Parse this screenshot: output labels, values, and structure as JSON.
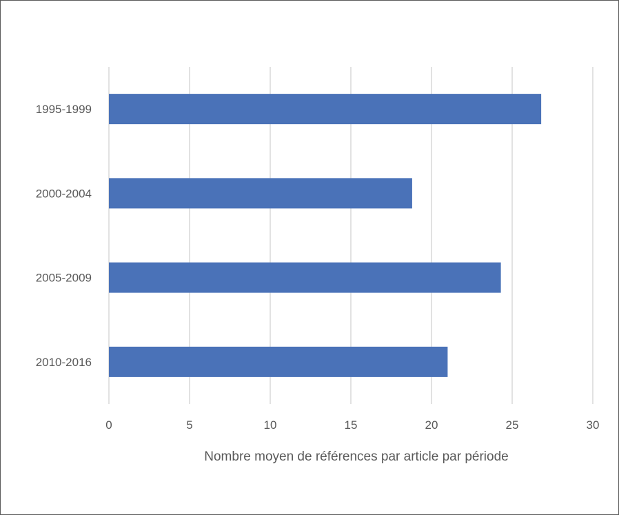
{
  "chart_data": {
    "type": "bar",
    "orientation": "horizontal",
    "categories": [
      "1995-1999",
      "2000-2004",
      "2005-2009",
      "2010-2016"
    ],
    "values": [
      26.8,
      18.8,
      24.3,
      21.0
    ],
    "title": "",
    "xlabel": "Nombre moyen de références par article par période",
    "ylabel": "",
    "xlim": [
      0,
      30
    ],
    "xticks": [
      "0",
      "5",
      "10",
      "15",
      "20",
      "25",
      "30"
    ],
    "grid": "vertical",
    "legend": "none",
    "bar_color": "#4a72b8",
    "grid_color": "#d9d9d9",
    "text_color": "#595959"
  }
}
